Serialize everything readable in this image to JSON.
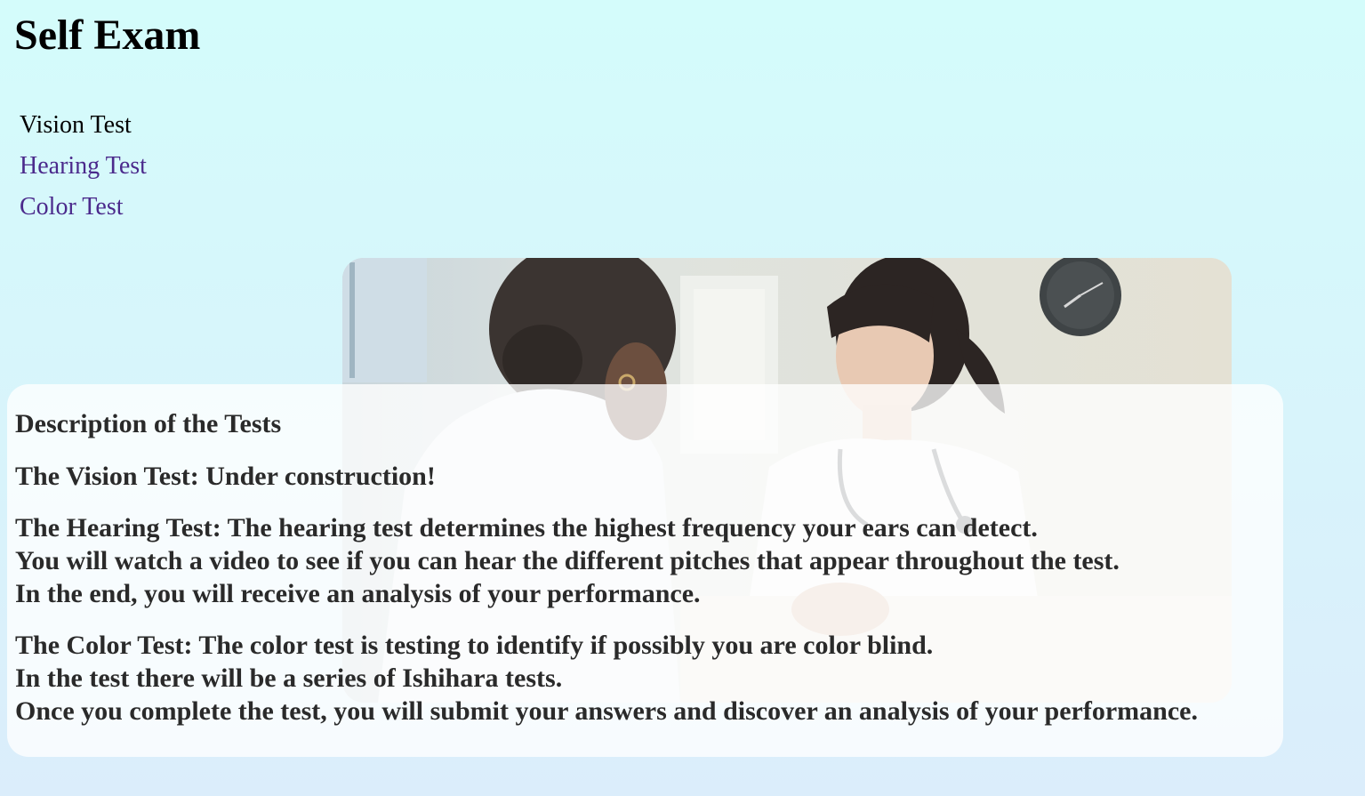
{
  "page": {
    "title": "Self Exam"
  },
  "nav": {
    "items": [
      {
        "label": "Vision Test",
        "state": "current"
      },
      {
        "label": "Hearing Test",
        "state": "visited"
      },
      {
        "label": "Color Test",
        "state": "visited"
      }
    ]
  },
  "hero": {
    "image": "doctor-patient-consultation-photo"
  },
  "description": {
    "heading": "Description of the Tests",
    "vision": {
      "lines": [
        "The Vision Test: Under construction!"
      ]
    },
    "hearing": {
      "lines": [
        "The Hearing Test: The hearing test determines the highest frequency your ears can detect.",
        "You will watch a video to see if you can hear the different pitches that appear throughout the test.",
        "In the end, you will receive an analysis of your performance."
      ]
    },
    "color": {
      "lines": [
        "The Color Test: The color test is testing to identify if possibly you are color blind.",
        "In the test there will be a series of Ishihara tests.",
        "Once you complete the test, you will submit your answers and discover an analysis of your performance."
      ]
    }
  },
  "colors": {
    "background_top": "#d4fcfb",
    "background_bottom": "#dbedfb",
    "link_visited": "#4b2a8c"
  }
}
